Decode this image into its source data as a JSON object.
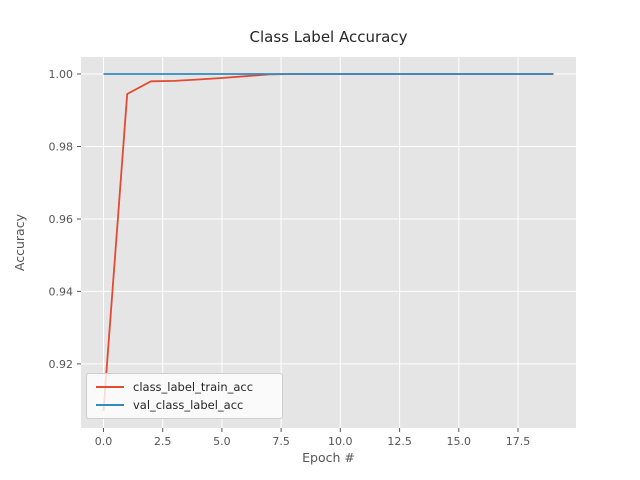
{
  "chart_data": {
    "type": "line",
    "title": "Class Label Accuracy",
    "xlabel": "Epoch #",
    "ylabel": "Accuracy",
    "x": [
      0,
      1,
      2,
      3,
      4,
      5,
      6,
      7,
      8,
      9,
      10,
      11,
      12,
      13,
      14,
      15,
      16,
      17,
      18,
      19
    ],
    "series": [
      {
        "name": "class_label_train_acc",
        "color": "#E24A33",
        "values": [
          0.907,
          0.9945,
          0.998,
          0.9981,
          0.9985,
          0.9989,
          0.9994,
          0.9999,
          1.0,
          1.0,
          1.0,
          1.0,
          1.0,
          1.0,
          1.0,
          1.0,
          1.0,
          1.0,
          1.0,
          1.0
        ]
      },
      {
        "name": "val_class_label_acc",
        "color": "#348ABD",
        "values": [
          1.0,
          1.0,
          1.0,
          1.0,
          1.0,
          1.0,
          1.0,
          1.0,
          1.0,
          1.0,
          1.0,
          1.0,
          1.0,
          1.0,
          1.0,
          1.0,
          1.0,
          1.0,
          1.0,
          1.0
        ]
      }
    ],
    "xlim": [
      -0.95,
      19.95
    ],
    "ylim": [
      0.9023,
      1.0047
    ],
    "xticks": [
      0.0,
      2.5,
      5.0,
      7.5,
      10.0,
      12.5,
      15.0,
      17.5
    ],
    "xtick_labels": [
      "0.0",
      "2.5",
      "5.0",
      "7.5",
      "10.0",
      "12.5",
      "15.0",
      "17.5"
    ],
    "yticks": [
      0.92,
      0.94,
      0.96,
      0.98,
      1.0
    ],
    "ytick_labels": [
      "0.92",
      "0.94",
      "0.96",
      "0.98",
      "1.00"
    ],
    "grid": true,
    "legend_position": "lower left",
    "style": {
      "fig_bg": "#ffffff",
      "plot_bg": "#E5E5E5",
      "grid_color": "#ffffff",
      "tick_color": "#555555",
      "label_color": "#555555",
      "title_color": "#262626"
    }
  }
}
